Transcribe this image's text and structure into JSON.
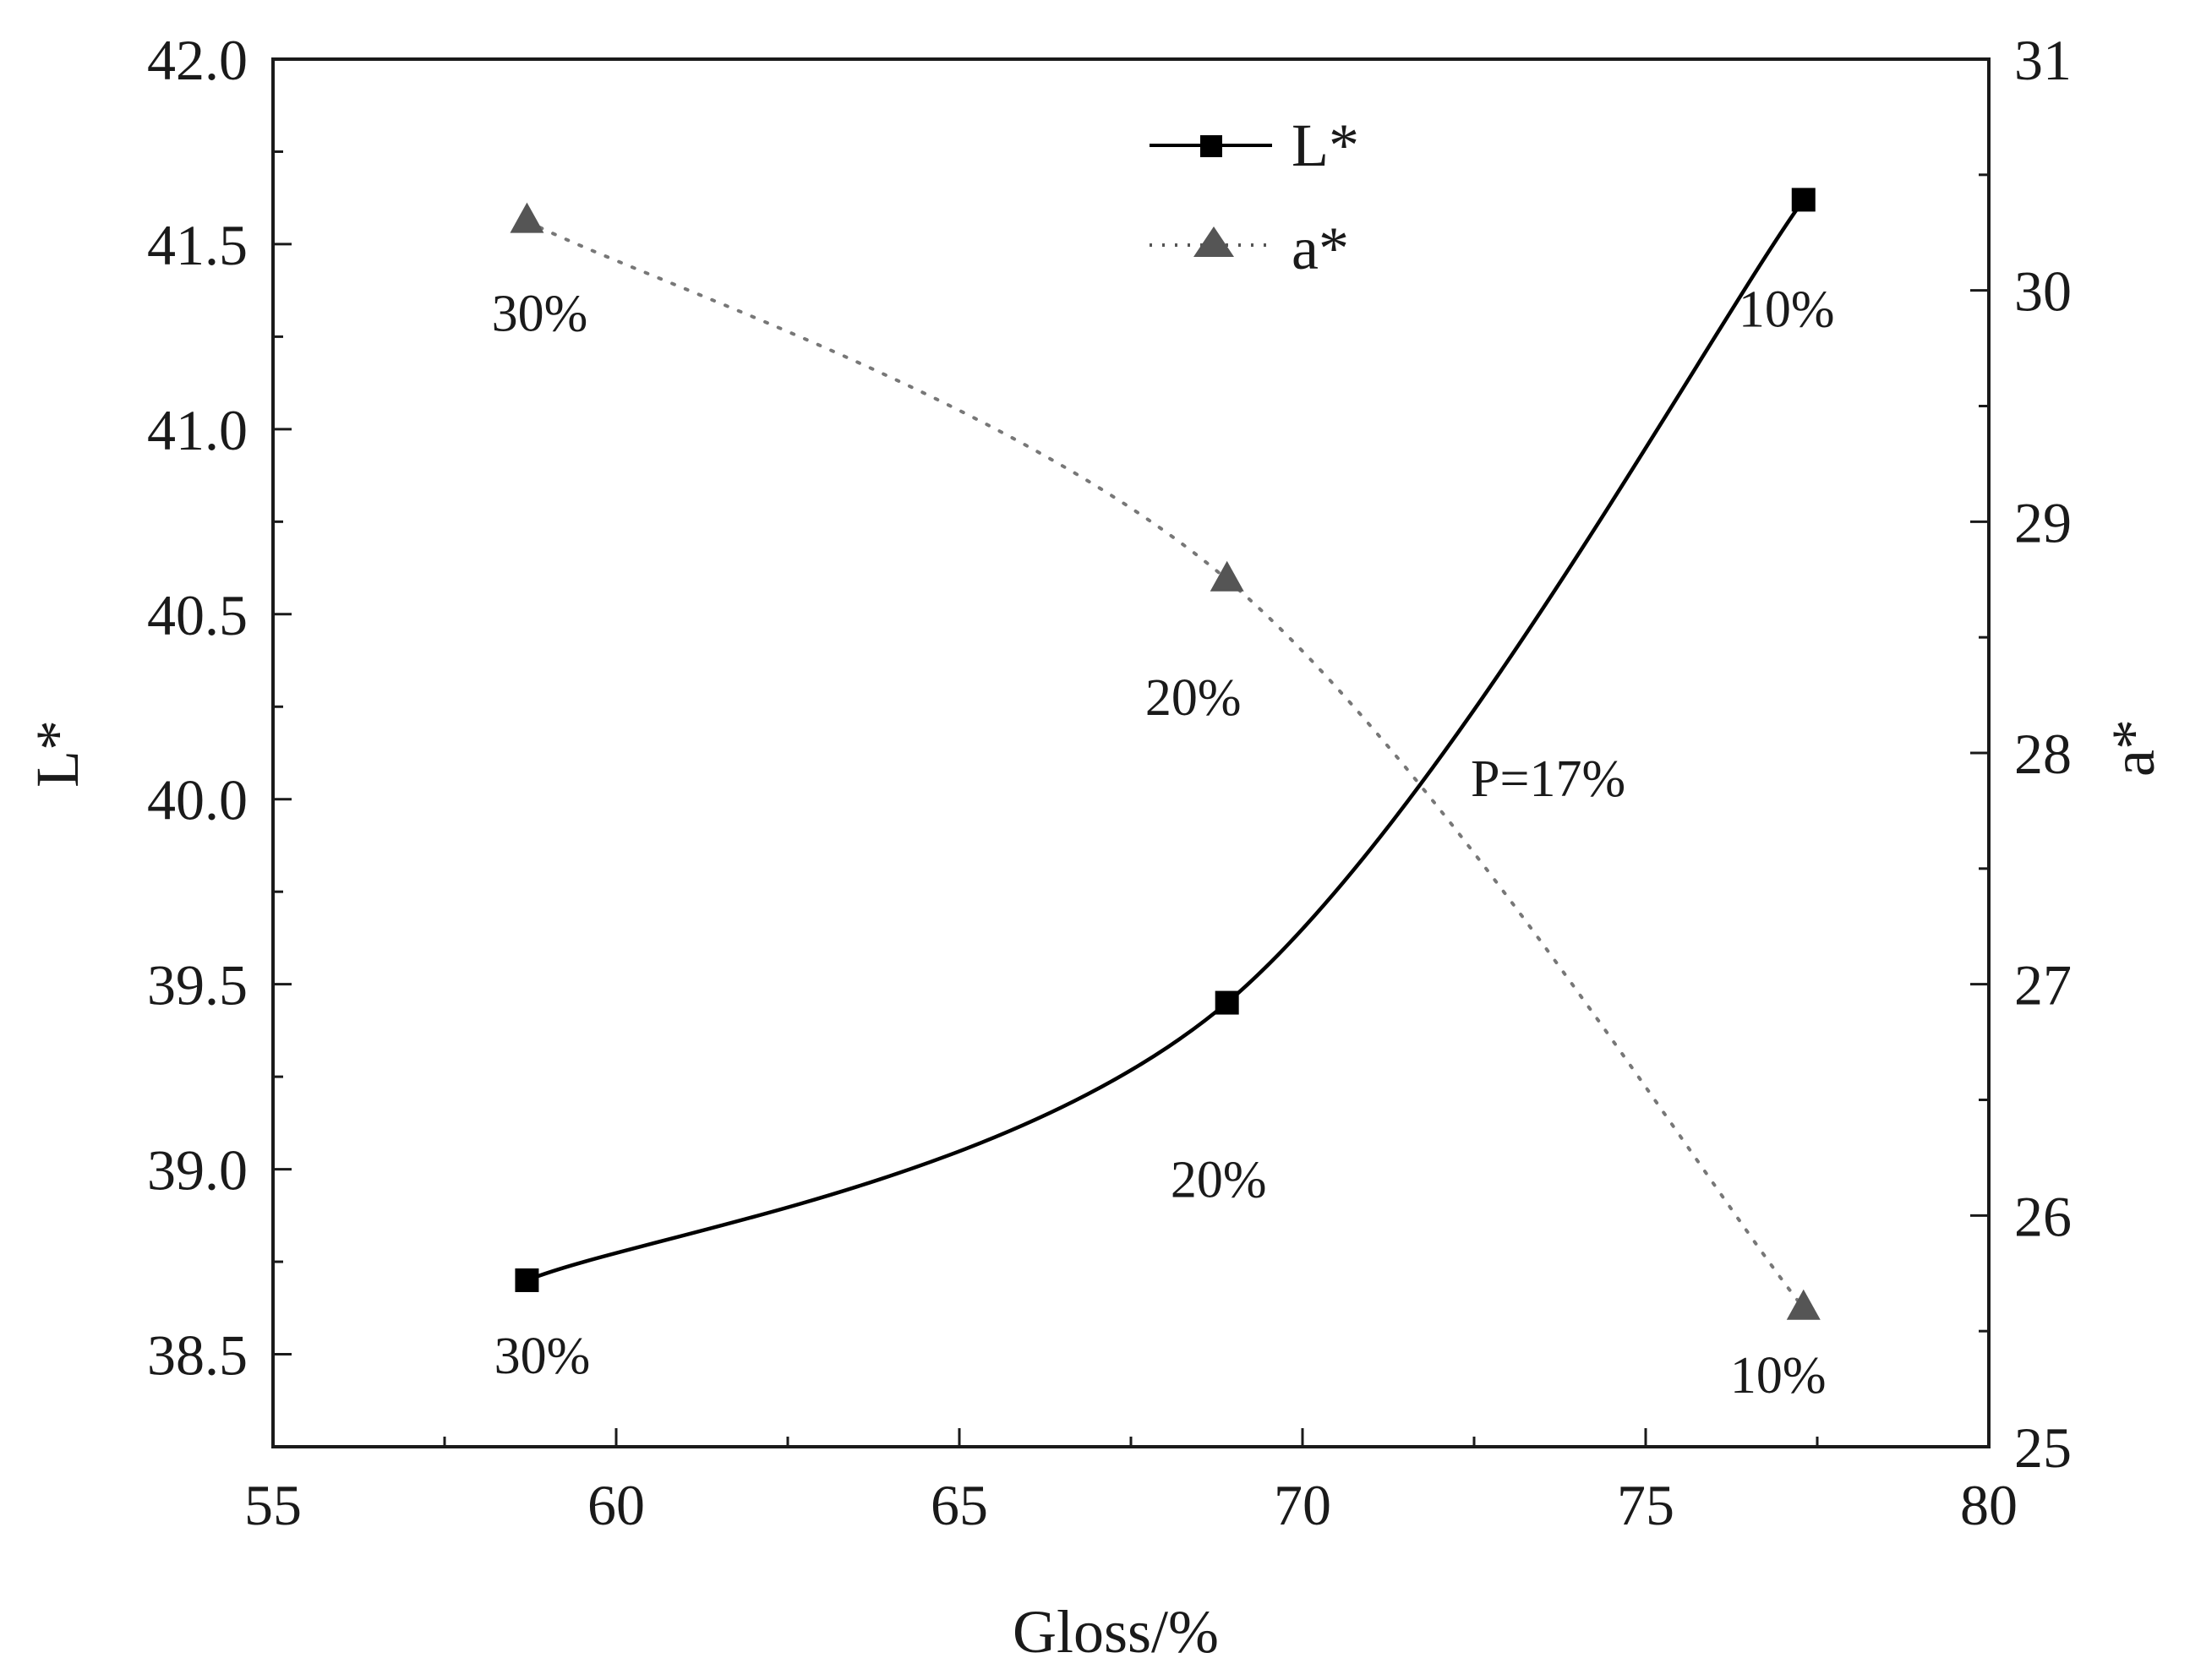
{
  "chart_data": {
    "type": "line",
    "xlabel": "Gloss/%",
    "ylabel_left": "L*",
    "ylabel_right": "a*",
    "xlim": [
      55,
      80
    ],
    "ylim_left": [
      38.25,
      42.0
    ],
    "ylim_right": [
      25,
      31
    ],
    "x_ticks": [
      "55",
      "60",
      "65",
      "70",
      "75",
      "80"
    ],
    "y_left_ticks": [
      "38.5",
      "39.0",
      "39.5",
      "40.0",
      "40.5",
      "41.0",
      "41.5",
      "42.0"
    ],
    "y_right_ticks": [
      "25",
      "26",
      "27",
      "28",
      "29",
      "30",
      "31"
    ],
    "legend_position": "top-center",
    "series": [
      {
        "name": "L*",
        "axis": "left",
        "marker": "square",
        "line": "solid",
        "color": "#000000",
        "x": [
          58.7,
          68.9,
          77.3
        ],
        "y": [
          38.7,
          39.45,
          41.62
        ],
        "point_labels": [
          "30%",
          "20%",
          "10%"
        ]
      },
      {
        "name": "a*",
        "axis": "right",
        "marker": "triangle",
        "line": "dotted",
        "color": "#555555",
        "x": [
          58.7,
          68.9,
          77.3
        ],
        "y": [
          30.3,
          28.75,
          25.6
        ],
        "point_labels": [
          "30%",
          "20%",
          "10%"
        ]
      }
    ],
    "annotations": [
      {
        "text": "P=17%"
      }
    ]
  }
}
